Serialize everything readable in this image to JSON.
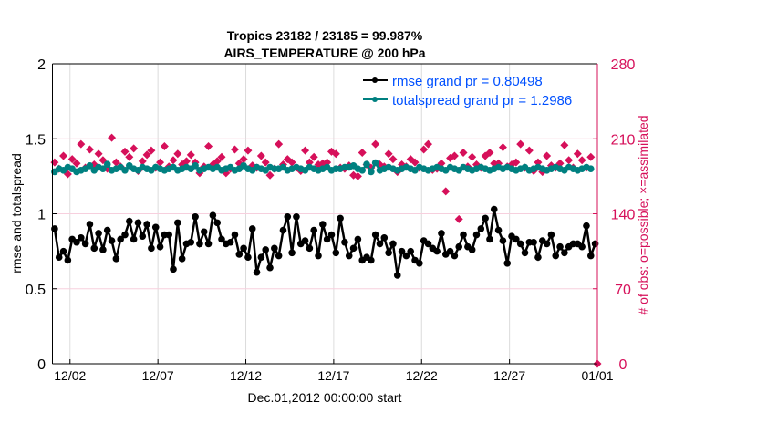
{
  "chart_data": {
    "type": "line",
    "title": [
      "Tropics 23182 / 23185 = 99.987%",
      "AIRS_TEMPERATURE @ 200 hPa"
    ],
    "xlabel": "Dec.01,2012 00:00:00 start",
    "ylabel": "rmse and totalspread",
    "y2label": "# of obs: o=possible; ×=assimilated",
    "xlim": [
      0,
      31
    ],
    "ylim": [
      0,
      2
    ],
    "y2lim": [
      0,
      280
    ],
    "xticks": [
      1,
      6,
      11,
      16,
      21,
      26,
      31
    ],
    "xtick_labels": [
      "12/02",
      "12/07",
      "12/12",
      "12/17",
      "12/22",
      "12/27",
      "01/01"
    ],
    "yticks": [
      0,
      0.5,
      1,
      1.5,
      2
    ],
    "ytick_labels": [
      "0",
      "0.5",
      "1",
      "1.5",
      "2"
    ],
    "y2ticks": [
      0,
      70,
      140,
      210,
      280
    ],
    "y2tick_labels": [
      "0",
      "70",
      "140",
      "210",
      "280"
    ],
    "x_start": 0.125,
    "x_step": 0.25,
    "legend_position": "top-right",
    "series": [
      {
        "name": "rmse grand pr = 0.80498",
        "color": "#000000",
        "axis": "left",
        "values": [
          0.9,
          0.71,
          0.75,
          0.69,
          0.83,
          0.81,
          0.84,
          0.8,
          0.93,
          0.77,
          0.87,
          0.76,
          0.89,
          0.82,
          0.7,
          0.83,
          0.86,
          0.95,
          0.83,
          0.94,
          0.85,
          0.93,
          0.77,
          0.91,
          0.78,
          0.86,
          0.86,
          0.63,
          0.94,
          0.7,
          0.8,
          0.81,
          0.98,
          0.8,
          0.88,
          0.8,
          0.99,
          0.94,
          0.83,
          0.8,
          0.81,
          0.86,
          0.73,
          0.77,
          0.71,
          0.9,
          0.61,
          0.71,
          0.76,
          0.64,
          0.77,
          0.72,
          0.89,
          0.98,
          0.74,
          0.98,
          0.8,
          0.82,
          0.77,
          0.89,
          0.72,
          0.93,
          0.83,
          0.86,
          0.74,
          0.97,
          0.81,
          0.72,
          0.77,
          0.83,
          0.69,
          0.71,
          0.69,
          0.86,
          0.8,
          0.84,
          0.74,
          0.8,
          0.59,
          0.75,
          0.72,
          0.75,
          0.69,
          0.67,
          0.82,
          0.8,
          0.77,
          0.75,
          0.87,
          0.73,
          0.75,
          0.72,
          0.78,
          0.86,
          0.78,
          0.76,
          0.86,
          0.9,
          0.97,
          0.83,
          1.03,
          0.89,
          0.82,
          0.67,
          0.85,
          0.83,
          0.8,
          0.74,
          0.81,
          0.81,
          0.71,
          0.82,
          0.8,
          0.86,
          0.72,
          0.78,
          0.74,
          0.78,
          0.8,
          0.8,
          0.78,
          0.92,
          0.72,
          0.8
        ]
      },
      {
        "name": "totalspread grand pr = 1.2986",
        "color": "#008080",
        "axis": "left",
        "values": [
          1.28,
          1.3,
          1.29,
          1.31,
          1.3,
          1.28,
          1.29,
          1.3,
          1.32,
          1.29,
          1.31,
          1.3,
          1.33,
          1.29,
          1.3,
          1.31,
          1.29,
          1.32,
          1.3,
          1.29,
          1.31,
          1.3,
          1.29,
          1.31,
          1.3,
          1.29,
          1.3,
          1.31,
          1.29,
          1.3,
          1.31,
          1.3,
          1.32,
          1.29,
          1.3,
          1.31,
          1.3,
          1.31,
          1.29,
          1.3,
          1.31,
          1.29,
          1.3,
          1.32,
          1.3,
          1.29,
          1.31,
          1.3,
          1.29,
          1.31,
          1.3,
          1.3,
          1.31,
          1.29,
          1.3,
          1.31,
          1.3,
          1.29,
          1.31,
          1.3,
          1.29,
          1.3,
          1.31,
          1.29,
          1.3,
          1.3,
          1.31,
          1.31,
          1.32,
          1.3,
          1.29,
          1.33,
          1.28,
          1.34,
          1.29,
          1.3,
          1.31,
          1.3,
          1.29,
          1.3,
          1.31,
          1.3,
          1.29,
          1.31,
          1.3,
          1.29,
          1.3,
          1.31,
          1.3,
          1.29,
          1.31,
          1.3,
          1.29,
          1.31,
          1.3,
          1.29,
          1.3,
          1.31,
          1.3,
          1.29,
          1.3,
          1.31,
          1.3,
          1.31,
          1.3,
          1.29,
          1.3,
          1.31,
          1.29,
          1.3,
          1.31,
          1.3,
          1.29,
          1.3,
          1.31,
          1.3,
          1.29,
          1.31,
          1.3,
          1.29,
          1.3,
          1.31,
          1.3
        ]
      },
      {
        "name": "obs assimilated",
        "color": "#d6105a",
        "axis": "right",
        "marker": "diamond",
        "values": [
          188,
          182,
          194,
          177,
          191,
          187,
          205,
          183,
          200,
          186,
          196,
          190,
          182,
          211,
          188,
          184,
          198,
          193,
          201,
          180,
          189,
          195,
          199,
          183,
          188,
          203,
          184,
          190,
          196,
          186,
          189,
          195,
          188,
          178,
          184,
          203,
          186,
          189,
          193,
          178,
          182,
          200,
          187,
          191,
          199,
          185,
          183,
          194,
          188,
          176,
          182,
          205,
          186,
          191,
          188,
          183,
          180,
          199,
          188,
          193,
          186,
          187,
          188,
          198,
          196,
          183,
          182,
          185,
          176,
          175,
          197,
          186,
          183,
          205,
          186,
          184,
          196,
          191,
          179,
          186,
          184,
          191,
          188,
          183,
          200,
          205,
          181,
          182,
          187,
          161,
          192,
          194,
          135,
          197,
          184,
          193,
          186,
          183,
          194,
          197,
          187,
          187,
          202,
          184,
          186,
          188,
          205,
          183,
          199,
          180,
          188,
          179,
          194,
          185,
          183,
          187,
          204,
          190,
          183,
          196,
          190,
          183,
          193,
          0
        ]
      }
    ]
  }
}
